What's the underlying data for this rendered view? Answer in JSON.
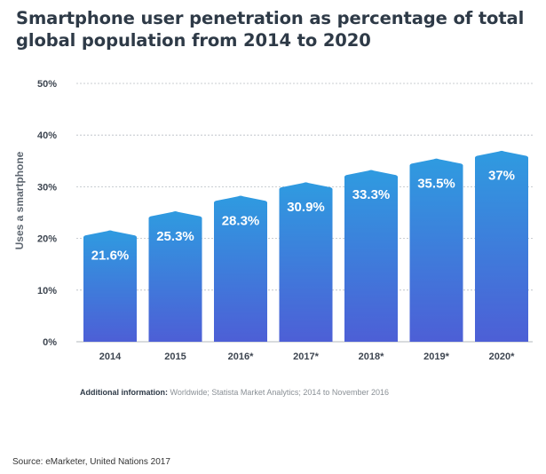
{
  "chart_data": {
    "type": "bar",
    "title": "Smartphone user penetration as percentage of total global population from 2014 to 2020",
    "ylabel": "Uses a smartphone",
    "xlabel": "",
    "categories": [
      "2014",
      "2015",
      "2016*",
      "2017*",
      "2018*",
      "2019*",
      "2020*"
    ],
    "values": [
      21.6,
      25.3,
      28.3,
      30.9,
      33.3,
      35.5,
      37
    ],
    "value_labels": [
      "21.6%",
      "25.3%",
      "28.3%",
      "30.9%",
      "33.3%",
      "35.5%",
      "37%"
    ],
    "ylim": [
      0,
      50
    ],
    "yticks": [
      0,
      10,
      20,
      30,
      40,
      50
    ],
    "ytick_labels": [
      "0%",
      "10%",
      "20%",
      "30%",
      "40%",
      "50%"
    ],
    "grid": true,
    "legend": "none",
    "colors": {
      "bar_top": "#2f9be0",
      "bar_bottom": "#4d5fd6",
      "grid": "#b8bec4"
    }
  },
  "footnote": {
    "key": "Additional information:",
    "value": "Worldwide; Statista Market Analytics; 2014 to November 2016"
  },
  "source": "Source: eMarketer, United Nations 2017"
}
